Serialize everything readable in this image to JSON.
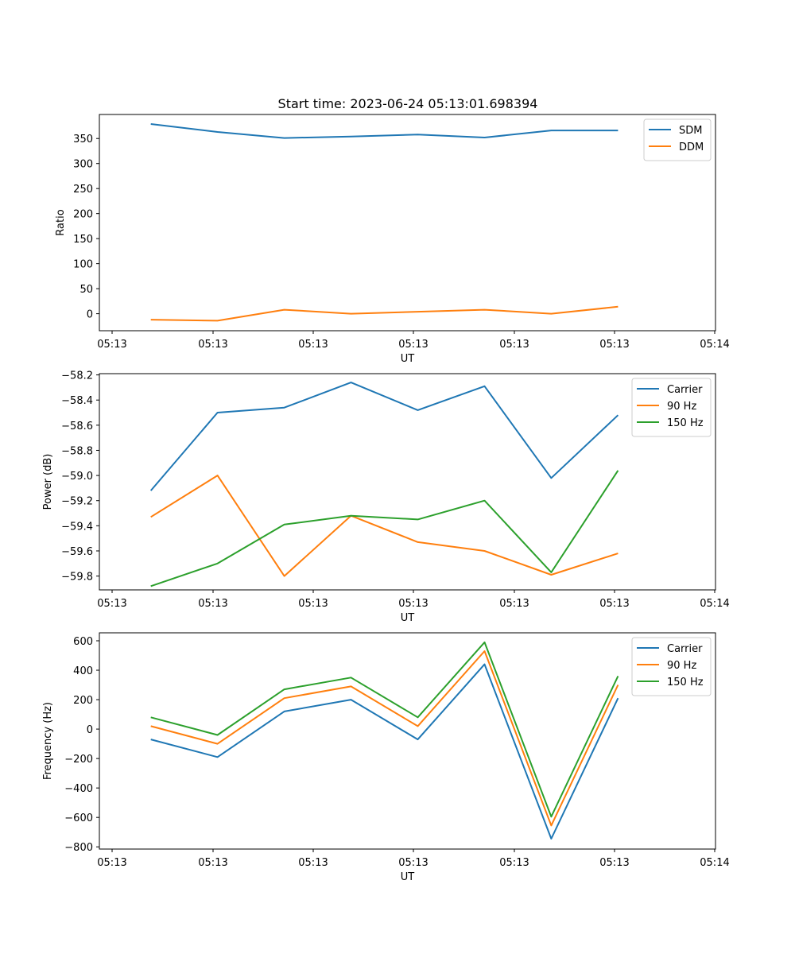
{
  "title": "Start time: 2023-06-24 05:13:01.698394",
  "chart_data": [
    {
      "type": "line",
      "title": "Start time: 2023-06-24 05:13:01.698394",
      "xlabel": "UT",
      "ylabel": "Ratio",
      "x_ticks": [
        "05:13",
        "05:13",
        "05:13",
        "05:13",
        "05:13",
        "05:13",
        "05:14"
      ],
      "x": [
        1,
        2,
        3,
        4,
        5,
        6,
        7,
        8
      ],
      "xlim": [
        0.23,
        9.46
      ],
      "ylim": [
        -34,
        398
      ],
      "y_ticks": [
        0,
        50,
        100,
        150,
        200,
        250,
        300,
        350
      ],
      "legend": "top-right",
      "series": [
        {
          "name": "SDM",
          "color": "#1f77b4",
          "values": [
            379,
            363,
            351,
            354,
            358,
            352,
            366,
            366
          ]
        },
        {
          "name": "DDM",
          "color": "#ff7f0e",
          "values": [
            -12,
            -14,
            8,
            0,
            4,
            8,
            0,
            14
          ]
        }
      ]
    },
    {
      "type": "line",
      "xlabel": "UT",
      "ylabel": "Power (dB)",
      "x_ticks": [
        "05:13",
        "05:13",
        "05:13",
        "05:13",
        "05:13",
        "05:13",
        "05:14"
      ],
      "x": [
        1,
        2,
        3,
        4,
        5,
        6,
        7,
        8
      ],
      "xlim": [
        0.23,
        9.46
      ],
      "ylim": [
        -59.91,
        -58.19
      ],
      "y_ticks": [
        -59.8,
        -59.6,
        -59.4,
        -59.2,
        -59.0,
        -58.8,
        -58.6,
        -58.4,
        -58.2
      ],
      "legend": "top-right",
      "series": [
        {
          "name": "Carrier",
          "color": "#1f77b4",
          "values": [
            -59.12,
            -58.5,
            -58.46,
            -58.26,
            -58.48,
            -58.29,
            -59.02,
            -58.52
          ]
        },
        {
          "name": "90 Hz",
          "color": "#ff7f0e",
          "values": [
            -59.33,
            -59.0,
            -59.8,
            -59.32,
            -59.53,
            -59.6,
            -59.79,
            -59.62
          ]
        },
        {
          "name": "150 Hz",
          "color": "#2ca02c",
          "values": [
            -59.88,
            -59.7,
            -59.39,
            -59.32,
            -59.35,
            -59.2,
            -59.77,
            -58.96
          ]
        }
      ]
    },
    {
      "type": "line",
      "xlabel": "UT",
      "ylabel": "Frequency (Hz)",
      "x_ticks": [
        "05:13",
        "05:13",
        "05:13",
        "05:13",
        "05:13",
        "05:13",
        "05:14"
      ],
      "x": [
        1,
        2,
        3,
        4,
        5,
        6,
        7,
        8
      ],
      "xlim": [
        0.23,
        9.46
      ],
      "ylim": [
        -815,
        654
      ],
      "y_ticks": [
        -800,
        -600,
        -400,
        -200,
        0,
        200,
        400,
        600
      ],
      "legend": "top-right",
      "series": [
        {
          "name": "Carrier",
          "color": "#1f77b4",
          "values": [
            -70,
            -190,
            120,
            200,
            -70,
            440,
            -745,
            210
          ]
        },
        {
          "name": "90 Hz",
          "color": "#ff7f0e",
          "values": [
            20,
            -100,
            210,
            290,
            20,
            530,
            -655,
            300
          ]
        },
        {
          "name": "150 Hz",
          "color": "#2ca02c",
          "values": [
            80,
            -40,
            270,
            350,
            80,
            590,
            -595,
            360
          ]
        }
      ]
    }
  ]
}
